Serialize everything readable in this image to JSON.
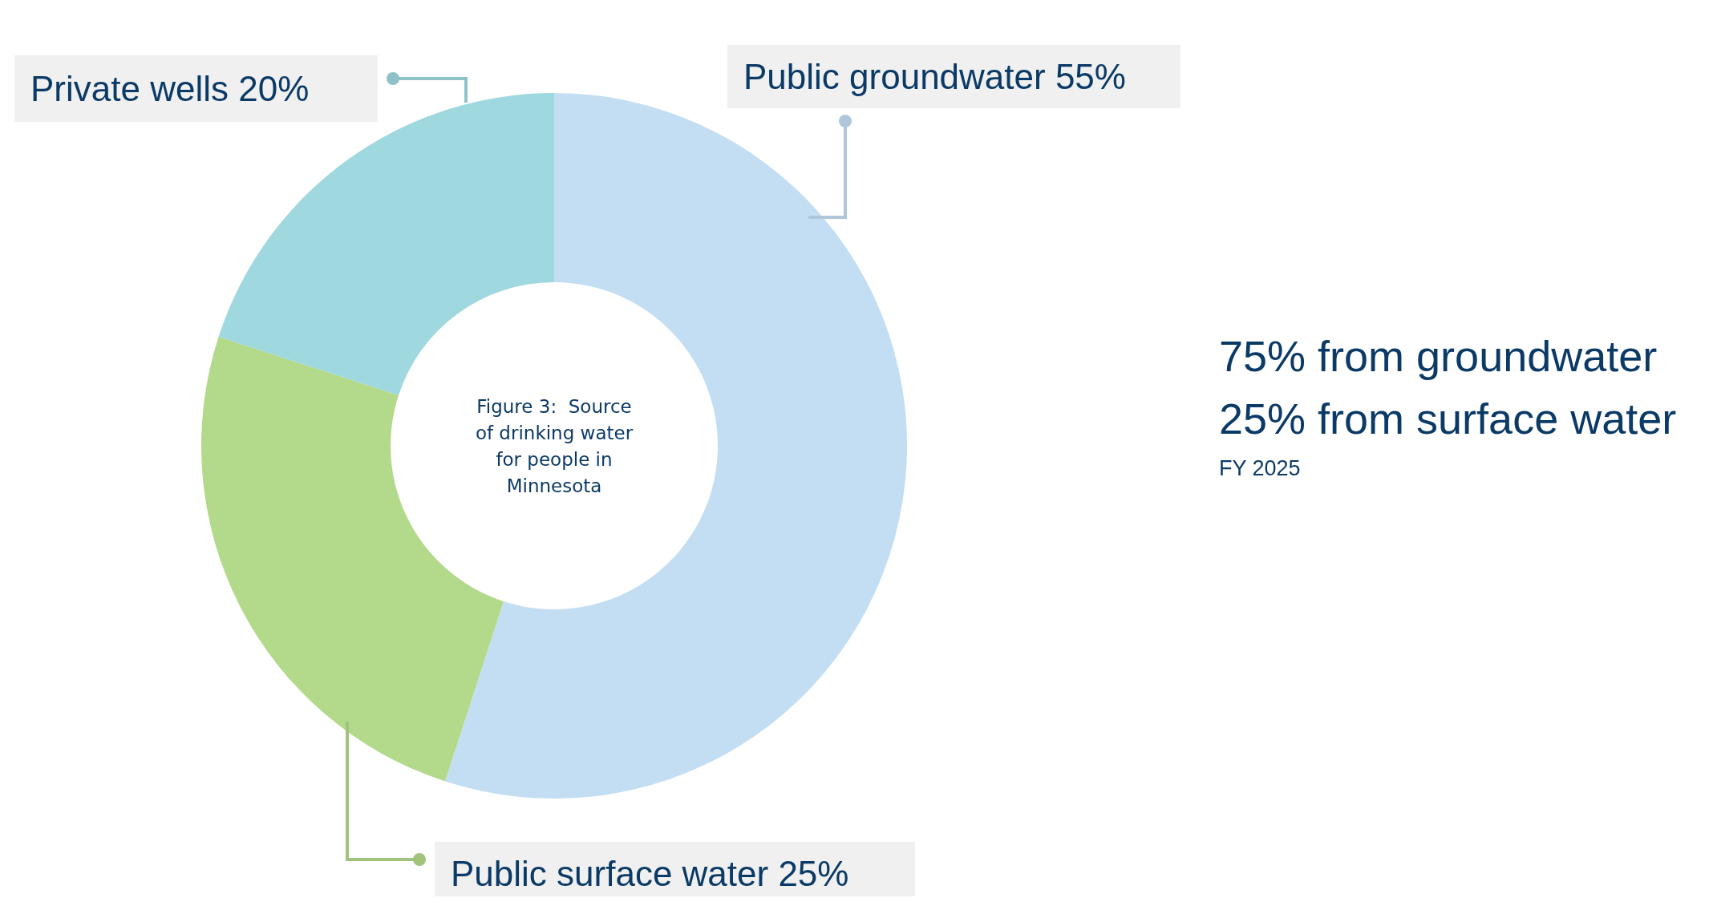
{
  "chart_data": {
    "type": "donut",
    "title": "Figure 3:  Source of drinking water for people in Minnesota",
    "categories": [
      "Public groundwater",
      "Public surface water",
      "Private wells"
    ],
    "values": [
      55,
      25,
      20
    ],
    "value_labels": [
      "55%",
      "25%",
      "20%"
    ],
    "colors": [
      "#c3def3",
      "#b3d98a",
      "#9fd8df"
    ],
    "annotations": [
      "75% from groundwater",
      "25% from surface water",
      "FY 2025"
    ]
  }
}
